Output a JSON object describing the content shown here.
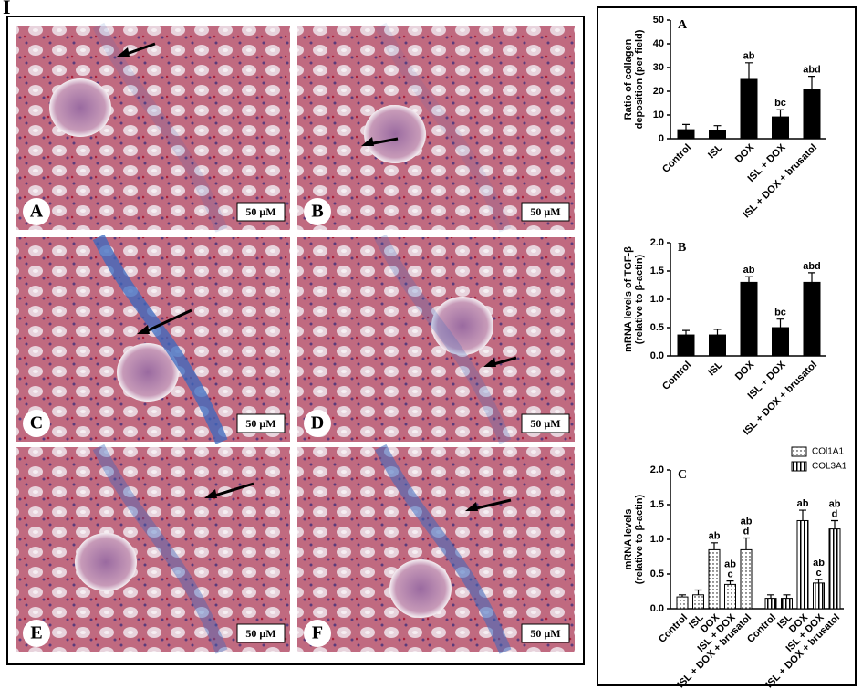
{
  "figure_label": "I",
  "micrographs": [
    {
      "label": "A",
      "scale": "50 μM"
    },
    {
      "label": "B",
      "scale": "50 μM"
    },
    {
      "label": "C",
      "scale": "50 μM"
    },
    {
      "label": "D",
      "scale": "50 μM"
    },
    {
      "label": "E",
      "scale": "50 μM"
    },
    {
      "label": "F",
      "scale": "50 μM"
    }
  ],
  "chart_data": [
    {
      "type": "bar",
      "panel": "A",
      "ylabel": [
        "Ratio of collagen",
        "deposition (per field)"
      ],
      "categories": [
        "Control",
        "ISL",
        "DOX",
        "ISL + DOX",
        "ISL + DOX + brusatol"
      ],
      "series": [
        {
          "color": "#000000",
          "values": [
            3.8,
            3.5,
            25,
            9.2,
            20.8
          ],
          "errors": [
            2.2,
            2.0,
            7,
            3,
            5.5
          ],
          "significance": [
            null,
            null,
            [
              "ab"
            ],
            [
              "bc"
            ],
            [
              "abd"
            ]
          ]
        }
      ],
      "ylim": [
        0,
        50
      ],
      "yticks": [
        0,
        10,
        20,
        30,
        40,
        50
      ]
    },
    {
      "type": "bar",
      "panel": "B",
      "ylabel": [
        "mRNA levels of TGF-β",
        "(relative to β-actin)"
      ],
      "categories": [
        "Control",
        "ISL",
        "DOX",
        "ISL + DOX",
        "ISL + DOX + brusatol"
      ],
      "series": [
        {
          "color": "#000000",
          "values": [
            0.37,
            0.37,
            1.3,
            0.5,
            1.3
          ],
          "errors": [
            0.08,
            0.1,
            0.1,
            0.15,
            0.17
          ],
          "significance": [
            null,
            null,
            [
              "ab"
            ],
            [
              "bc"
            ],
            [
              "abd"
            ]
          ]
        }
      ],
      "ylim": [
        0,
        2
      ],
      "yticks": [
        {
          "value": 0,
          "label": "0.0"
        },
        0.5,
        {
          "value": 1,
          "label": "1.0"
        },
        1.5,
        {
          "value": 2,
          "label": "2.0"
        }
      ]
    },
    {
      "type": "grouped_bar",
      "panel": "C",
      "ylabel": [
        "mRNA levels",
        "(relative to β-actin)"
      ],
      "categories": [
        "Control",
        "ISL",
        "DOX",
        "ISL + DOX",
        "ISL + DOX + brusatol"
      ],
      "series": [
        {
          "name": "COl1A1",
          "pattern": "dots",
          "values": [
            0.17,
            0.2,
            0.85,
            0.35,
            0.85
          ],
          "errors": [
            0.03,
            0.07,
            0.1,
            0.05,
            0.17
          ],
          "significance": [
            null,
            null,
            [
              "ab"
            ],
            [
              "ab",
              "c"
            ],
            [
              "ab",
              "d"
            ]
          ]
        },
        {
          "name": "COL3A1",
          "pattern": "stripes",
          "values": [
            0.15,
            0.15,
            1.27,
            0.37,
            1.15
          ],
          "errors": [
            0.05,
            0.05,
            0.15,
            0.05,
            0.12
          ],
          "significance": [
            null,
            null,
            [
              "ab"
            ],
            [
              "ab",
              "c"
            ],
            [
              "ab",
              "d"
            ]
          ]
        }
      ],
      "ylim": [
        0,
        2
      ],
      "yticks": [
        {
          "value": 0,
          "label": "0.0"
        },
        0.5,
        {
          "value": 1,
          "label": "1.0"
        },
        1.5,
        {
          "value": 2,
          "label": "2.0"
        }
      ],
      "legend": "top-right"
    }
  ]
}
